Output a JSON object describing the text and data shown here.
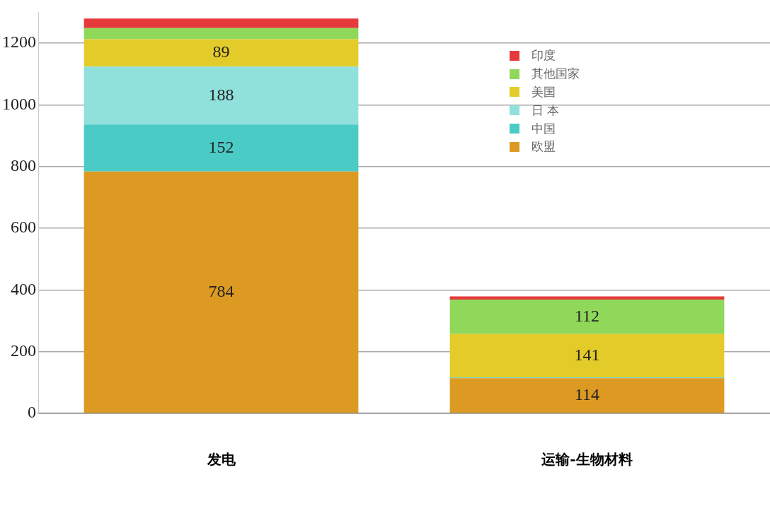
{
  "chart_data": {
    "type": "bar",
    "stacked": true,
    "categories": [
      "发电",
      "运输-生物材料"
    ],
    "series": [
      {
        "name": "欧盟",
        "color": "#dc9a22",
        "values": [
          784,
          114
        ],
        "value_labels": [
          "784",
          "114"
        ]
      },
      {
        "name": "中国",
        "color": "#4bcbc6",
        "values": [
          152,
          2
        ],
        "value_labels": [
          "152",
          null
        ]
      },
      {
        "name": "日 本",
        "color": "#90e0dc",
        "values": [
          188,
          0
        ],
        "value_labels": [
          "188",
          null
        ]
      },
      {
        "name": "美国",
        "color": "#e3cc29",
        "values": [
          89,
          141
        ],
        "value_labels": [
          "89",
          "141"
        ]
      },
      {
        "name": "其他国家",
        "color": "#8fd85a",
        "values": [
          36,
          112
        ],
        "value_labels": [
          null,
          "112"
        ]
      },
      {
        "name": "印度",
        "color": "#e6393c",
        "values": [
          31,
          10
        ],
        "value_labels": [
          null,
          null
        ]
      }
    ],
    "ylim": [
      0,
      1300
    ],
    "yticks": [
      0,
      200,
      400,
      600,
      800,
      1000,
      1200
    ],
    "grid": "y",
    "legend": "top right"
  }
}
